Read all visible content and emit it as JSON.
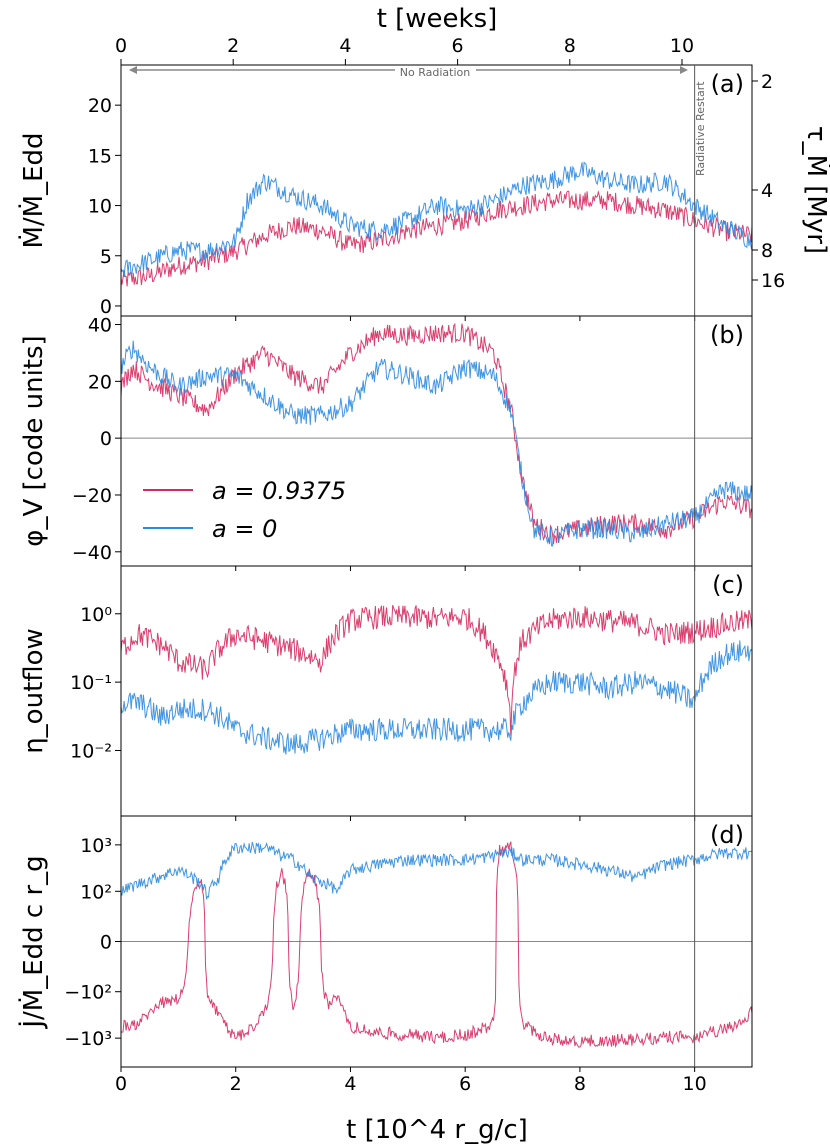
{
  "chart_data": {
    "type": "line",
    "x_axis": {
      "label": "t [10^4 r_g/c]",
      "range": [
        0,
        11
      ],
      "ticks": [
        0,
        2,
        4,
        6,
        8,
        10
      ],
      "tick_labels": [
        "0",
        "2",
        "4",
        "6",
        "8",
        "10"
      ]
    },
    "top_axis": {
      "label": "t [weeks]",
      "ticks": [
        0,
        2,
        4,
        6,
        8,
        10
      ],
      "tick_labels": [
        "0",
        "2",
        "4",
        "6",
        "8",
        "10"
      ]
    },
    "legend": {
      "placement": "left-middle of panel (b)",
      "entries": [
        {
          "name": "a = 0.9375",
          "color": "#d62a5e"
        },
        {
          "name": "a = 0",
          "color": "#2b8be0"
        }
      ]
    },
    "annotations": {
      "no_radiation": "No Radiation",
      "radiative_restart": "Radiative Restart",
      "restart_time": 10
    },
    "panels": [
      {
        "tag": "(a)",
        "ylabel": "Ṁ/Ṁ_Edd",
        "scale": "linear",
        "ylim": [
          -1,
          24
        ],
        "yticks": [
          0,
          5,
          10,
          15,
          20
        ],
        "ytick_labels": [
          "0",
          "5",
          "10",
          "15",
          "20"
        ],
        "right_axis": {
          "label": "τ_Ṁ [Myr]",
          "ticks": [
            2,
            4,
            8,
            16
          ],
          "tick_labels": [
            "2",
            "4",
            "8",
            "16"
          ]
        },
        "series": [
          {
            "name": "a = 0.9375",
            "color": "#d62a5e",
            "x": [
              0,
              0.5,
              1.0,
              1.5,
              2.0,
              2.5,
              3.0,
              3.5,
              4.0,
              4.5,
              5.0,
              5.5,
              6.0,
              6.5,
              7.0,
              7.5,
              8.0,
              8.5,
              9.0,
              9.5,
              10.0,
              10.5,
              11.0
            ],
            "y": [
              2.5,
              3,
              4,
              4.5,
              5.5,
              7,
              8,
              7.5,
              6,
              6.5,
              7.5,
              8,
              8.5,
              9.5,
              10,
              10.5,
              10.5,
              10.5,
              10,
              9.5,
              8.5,
              7.5,
              7
            ]
          },
          {
            "name": "a = 0",
            "color": "#2b8be0",
            "x": [
              0,
              0.5,
              1.0,
              1.5,
              2.0,
              2.2,
              2.5,
              3.0,
              3.5,
              4.0,
              4.5,
              5.0,
              5.5,
              6.0,
              6.5,
              7.0,
              7.5,
              8.0,
              8.5,
              9.0,
              9.5,
              10.0,
              10.5,
              11.0
            ],
            "y": [
              3.5,
              4.5,
              5.5,
              5.5,
              6.5,
              10.5,
              12.5,
              11,
              10,
              8,
              7.5,
              8.5,
              10,
              9.5,
              10.5,
              12,
              12.5,
              13.5,
              12.5,
              12,
              12.5,
              10,
              8,
              6.5
            ]
          }
        ]
      },
      {
        "tag": "(b)",
        "ylabel": "φ_V [code units]",
        "scale": "linear",
        "ylim": [
          -45,
          43
        ],
        "yticks": [
          -40,
          -20,
          0,
          20,
          40
        ],
        "ytick_labels": [
          "−40",
          "−20",
          "0",
          "20",
          "40"
        ],
        "zero_line": true,
        "series": [
          {
            "name": "a = 0.9375",
            "color": "#d62a5e",
            "x": [
              0,
              0.2,
              0.5,
              1.0,
              1.5,
              2.0,
              2.5,
              3.0,
              3.5,
              4.0,
              4.5,
              5.0,
              5.5,
              6.0,
              6.5,
              6.8,
              7.0,
              7.2,
              7.5,
              8.0,
              8.5,
              9.0,
              9.5,
              10.0,
              10.5,
              11.0
            ],
            "y": [
              18,
              25,
              20,
              15,
              10,
              23,
              30,
              22,
              18,
              30,
              37,
              36,
              37,
              37,
              30,
              10,
              -15,
              -30,
              -34,
              -32,
              -30,
              -30,
              -32,
              -28,
              -22,
              -25
            ]
          },
          {
            "name": "a = 0",
            "color": "#2b8be0",
            "x": [
              0,
              0.2,
              0.5,
              1.0,
              1.5,
              2.0,
              2.5,
              3.0,
              3.5,
              4.0,
              4.5,
              5.0,
              5.5,
              6.0,
              6.5,
              6.8,
              7.0,
              7.2,
              7.5,
              8.0,
              8.5,
              9.0,
              9.5,
              10.0,
              10.5,
              11.0
            ],
            "y": [
              25,
              32,
              25,
              18,
              22,
              22,
              15,
              8,
              8,
              12,
              25,
              22,
              18,
              25,
              22,
              10,
              -15,
              -32,
              -35,
              -32,
              -32,
              -34,
              -30,
              -28,
              -18,
              -20
            ]
          }
        ]
      },
      {
        "tag": "(c)",
        "ylabel": "η_outflow",
        "scale": "log",
        "ylim": [
          0.0011,
          5
        ],
        "yticks": [
          0.01,
          0.1,
          1
        ],
        "ytick_labels": [
          "10⁻²",
          "10⁻¹",
          "10⁰"
        ],
        "series": [
          {
            "name": "a = 0.9375",
            "color": "#d62a5e",
            "x": [
              0,
              0.3,
              0.7,
              1.0,
              1.5,
              2.0,
              2.5,
              3.0,
              3.5,
              4.0,
              4.5,
              5.0,
              5.5,
              6.0,
              6.5,
              6.8,
              7.0,
              7.5,
              8.0,
              8.5,
              9.0,
              9.5,
              10.0,
              10.5,
              11.0
            ],
            "y": [
              0.3,
              0.5,
              0.35,
              0.2,
              0.15,
              0.5,
              0.4,
              0.3,
              0.2,
              0.8,
              0.9,
              0.9,
              0.85,
              0.9,
              0.3,
              0.02,
              0.4,
              0.8,
              0.9,
              0.8,
              0.7,
              0.5,
              0.55,
              0.7,
              0.8
            ]
          },
          {
            "name": "a = 0",
            "color": "#2b8be0",
            "x": [
              0,
              0.3,
              0.7,
              1.0,
              1.5,
              2.0,
              2.5,
              3.0,
              3.5,
              4.0,
              4.5,
              5.0,
              5.5,
              6.0,
              6.5,
              6.8,
              7.0,
              7.5,
              8.0,
              8.5,
              9.0,
              9.5,
              10.0,
              10.5,
              11.0
            ],
            "y": [
              0.05,
              0.05,
              0.03,
              0.04,
              0.04,
              0.02,
              0.015,
              0.012,
              0.015,
              0.02,
              0.02,
              0.02,
              0.02,
              0.02,
              0.02,
              0.02,
              0.05,
              0.1,
              0.1,
              0.08,
              0.1,
              0.08,
              0.05,
              0.25,
              0.3
            ]
          }
        ]
      },
      {
        "tag": "(d)",
        "ylabel": "J̇/Ṁ_Edd c r_g",
        "scale": "symlog",
        "ylim": [
          -4000,
          4000
        ],
        "yticks": [
          -1000,
          -100,
          0,
          100,
          1000
        ],
        "ytick_labels": [
          "−10³",
          "−10²",
          "0",
          "10²",
          "10³"
        ],
        "zero_line": true,
        "series": [
          {
            "name": "a = 0.9375",
            "color": "#d62a5e",
            "x": [
              0,
              0.3,
              0.6,
              1.0,
              1.4,
              1.5,
              1.7,
              2.0,
              2.5,
              2.8,
              3.0,
              3.3,
              3.6,
              3.8,
              4.0,
              4.5,
              5.0,
              5.5,
              6.0,
              6.5,
              6.6,
              6.8,
              7.0,
              7.5,
              8.0,
              8.5,
              9.0,
              9.5,
              10.0,
              10.5,
              11.0
            ],
            "y": [
              -600,
              -500,
              -200,
              -150,
              200,
              -100,
              -300,
              -1000,
              -300,
              300,
              -200,
              300,
              -200,
              -100,
              -600,
              -800,
              -900,
              -1000,
              -900,
              -500,
              800,
              900,
              -500,
              -1100,
              -1200,
              -1200,
              -1100,
              -1000,
              -1000,
              -700,
              -300
            ]
          },
          {
            "name": "a = 0",
            "color": "#2b8be0",
            "x": [
              0,
              0.3,
              0.6,
              1.0,
              1.4,
              1.5,
              1.7,
              2.0,
              2.5,
              2.8,
              3.0,
              3.3,
              3.6,
              3.8,
              4.0,
              4.5,
              5.0,
              5.5,
              6.0,
              6.5,
              6.6,
              6.8,
              7.0,
              7.5,
              8.0,
              8.5,
              9.0,
              9.5,
              10.0,
              10.5,
              11.0
            ],
            "y": [
              100,
              150,
              200,
              300,
              150,
              80,
              200,
              900,
              900,
              600,
              500,
              200,
              150,
              100,
              300,
              400,
              500,
              500,
              500,
              600,
              700,
              700,
              500,
              500,
              400,
              300,
              200,
              400,
              500,
              700,
              700
            ]
          }
        ]
      }
    ]
  }
}
